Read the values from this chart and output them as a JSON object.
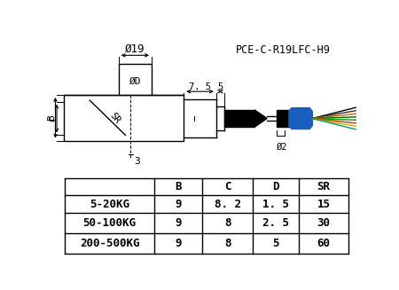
{
  "title": "PCE-C-R19LFC-H9",
  "background_color": "#ffffff",
  "table_headers": [
    "",
    "B",
    "C",
    "D",
    "SR"
  ],
  "table_rows": [
    [
      "5-20KG",
      "9",
      "8. 2",
      "1. 5",
      "15"
    ],
    [
      "50-100KG",
      "9",
      "8",
      "2. 5",
      "30"
    ],
    [
      "200-500KG",
      "9",
      "8",
      "5",
      "60"
    ]
  ],
  "dim_phi19": "Ø19",
  "dim_phiD": "ØD",
  "dim_phi2": "Ø2",
  "dim_B": "B",
  "dim_C": "C",
  "dim_SR": "SR",
  "dim_75": "7. 5",
  "dim_5": "5",
  "dim_3": "3",
  "cable_blue": "#1a5fbf",
  "lw": 1.0
}
